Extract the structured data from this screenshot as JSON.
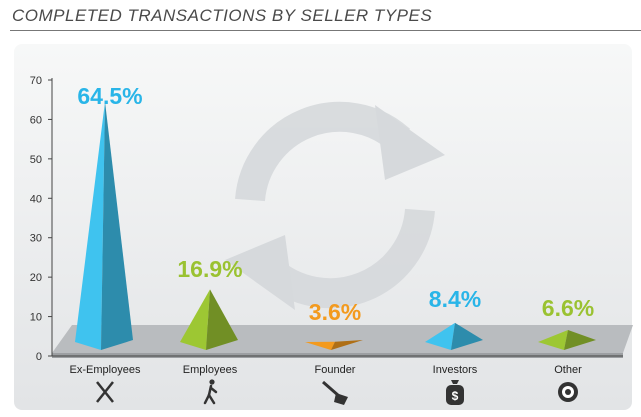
{
  "chart_data": {
    "type": "bar",
    "title": "COMPLETED TRANSACTIONS BY SELLER TYPES",
    "categories": [
      "Ex-Employees",
      "Employees",
      "Founder",
      "Investors",
      "Other"
    ],
    "values": [
      64.5,
      16.9,
      3.6,
      8.4,
      6.6
    ],
    "data_labels": [
      "64.5%",
      "16.9%",
      "3.6%",
      "8.4%",
      "6.6%"
    ],
    "colors": [
      "#3fc3ef",
      "#9dc733",
      "#f39a1e",
      "#3fc3ef",
      "#9dc733"
    ],
    "label_colors": [
      "#29b5e8",
      "#9ac231",
      "#f39a1e",
      "#29b5e8",
      "#9ac231"
    ],
    "icons": [
      "x-icon",
      "walking-person-icon",
      "shovel-icon",
      "money-bag-icon",
      "target-icon"
    ],
    "yticks": [
      "0",
      "10",
      "20",
      "30",
      "40",
      "50",
      "60",
      "70"
    ],
    "ylim": [
      0,
      70
    ],
    "xlabel": "",
    "ylabel": "",
    "grid": false,
    "background_decoration": "recycle-arrows-icon"
  }
}
